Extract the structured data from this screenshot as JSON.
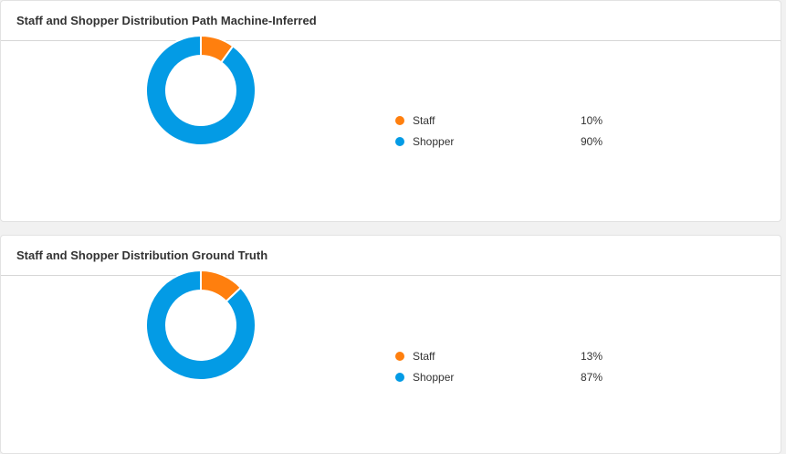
{
  "chart_data": [
    {
      "type": "pie",
      "title": "Staff and Shopper Distribution Path Machine-Inferred",
      "donut": true,
      "categories": [
        "Staff",
        "Shopper"
      ],
      "values": [
        10,
        90
      ],
      "labels": [
        "10%",
        "90%"
      ],
      "colors": [
        "#ff7f0e",
        "#039be5"
      ],
      "legend": "right"
    },
    {
      "type": "pie",
      "title": "Staff and Shopper Distribution Ground Truth",
      "donut": true,
      "categories": [
        "Staff",
        "Shopper"
      ],
      "values": [
        13,
        87
      ],
      "labels": [
        "13%",
        "87%"
      ],
      "colors": [
        "#ff7f0e",
        "#039be5"
      ],
      "legend": "right"
    }
  ]
}
